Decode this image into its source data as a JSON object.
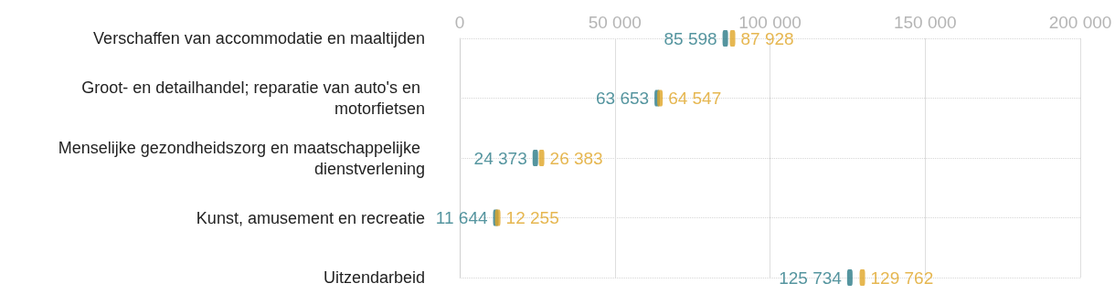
{
  "chart_data": {
    "type": "scatter",
    "orientation": "horizontal",
    "categories": [
      "Verschaffen van accommodatie en maaltijden",
      "Groot- en detailhandel; reparatie van auto's en motorfietsen",
      "Menselijke gezondheidszorg en maatschappelijke dienstverlening",
      "Kunst, amusement en recreatie",
      "Uitzendarbeid"
    ],
    "series": [
      {
        "color": "#2b7a87",
        "values": [
          85598,
          63653,
          24373,
          11644,
          125734
        ],
        "value_labels": [
          "85 598",
          "63 653",
          "24 373",
          "11 644",
          "125 734"
        ]
      },
      {
        "color": "#e0a526",
        "values": [
          87928,
          64547,
          26383,
          12255,
          129762
        ],
        "value_labels": [
          "87 928",
          "64 547",
          "26 383",
          "12 255",
          "129 762"
        ]
      }
    ],
    "xlim": [
      0,
      200000
    ],
    "xticks": [
      {
        "value": 0,
        "label": "0"
      },
      {
        "value": 50000,
        "label": "50 000"
      },
      {
        "value": 100000,
        "label": "100 000"
      },
      {
        "value": 150000,
        "label": "150 000"
      },
      {
        "value": 200000,
        "label": "200 000"
      }
    ],
    "grid": true
  }
}
